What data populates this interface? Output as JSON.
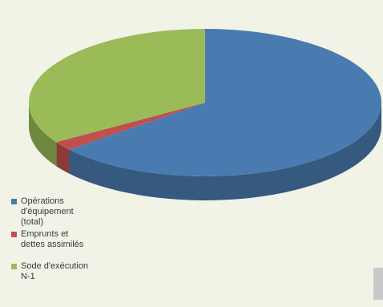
{
  "chart_data": {
    "type": "pie",
    "style": "3d",
    "slices": [
      {
        "label": "Opérations\nd'équipement\n(total)",
        "value": 64,
        "color": "#4a7bb0"
      },
      {
        "label": "Emprunts et\ndettes assimilés",
        "value": 2,
        "color": "#c0504d"
      },
      {
        "label": "Sode d'exécution\nN-1",
        "value": 34,
        "color": "#9bbb59"
      }
    ],
    "legend_position": "bottom-left"
  }
}
